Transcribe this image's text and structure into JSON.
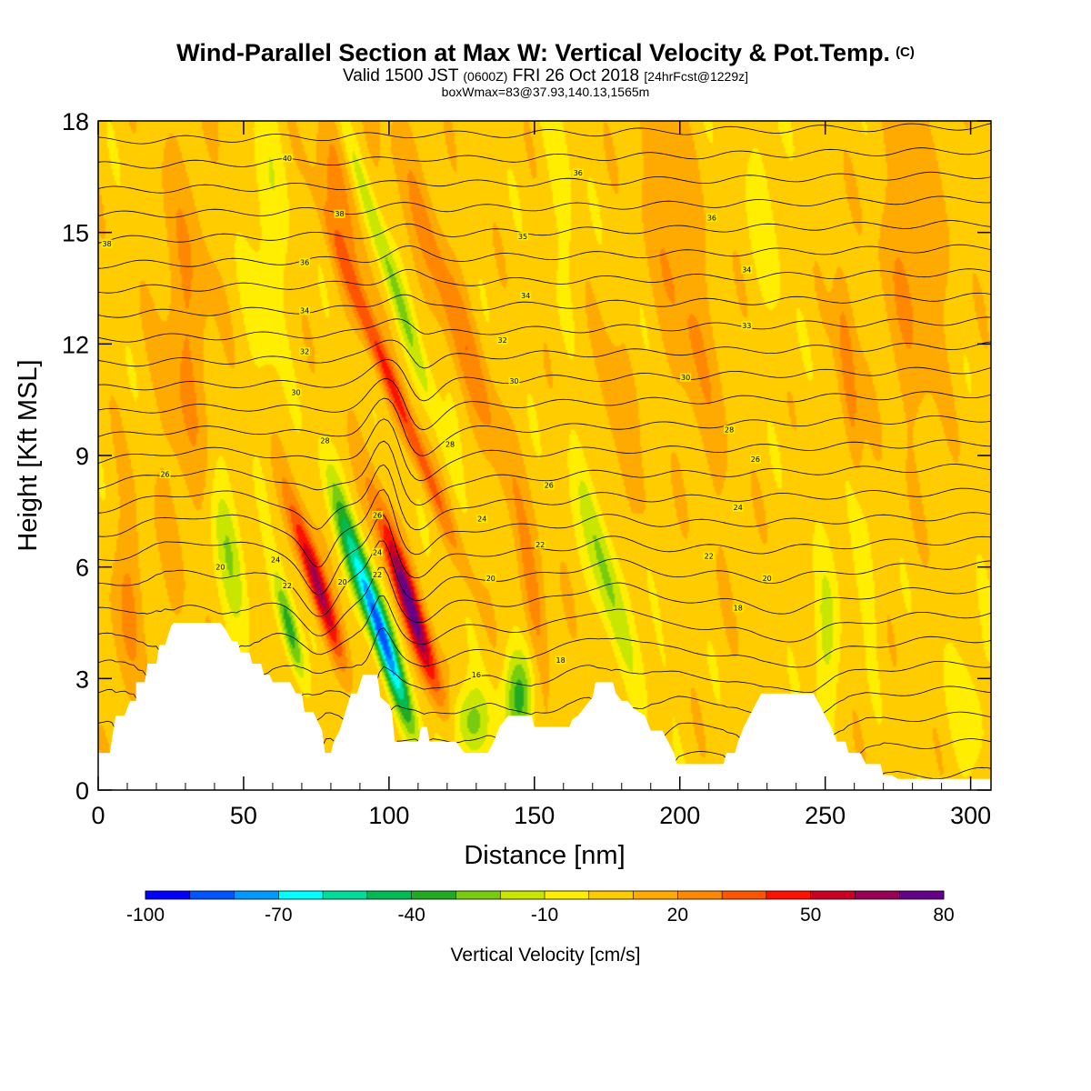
{
  "title": {
    "main": "Wind-Parallel Section at Max W: Vertical Velocity & Pot.Temp.",
    "copyright": "(C)",
    "valid_prefix": "Valid 1500 JST",
    "valid_zulu": "(0600Z)",
    "valid_date": "FRI 26 Oct 2018",
    "forecast": "[24hrFcst@1229z]",
    "box": "boxWmax=83@37.93,140.13,1565m"
  },
  "chart_data": {
    "type": "heatmap",
    "xlabel": "Distance [nm]",
    "ylabel": "Height [Kft MSL]",
    "xlim": [
      0,
      307
    ],
    "ylim": [
      0,
      18
    ],
    "xticks": [
      0,
      50,
      100,
      150,
      200,
      250,
      300
    ],
    "yticks": [
      0,
      3,
      6,
      9,
      12,
      15,
      18
    ],
    "colorbar": {
      "title": "Vertical Velocity [cm/s]",
      "min": -100,
      "max": 80,
      "step": 10,
      "tick_values": [
        -100,
        -70,
        -40,
        -10,
        20,
        50,
        80
      ],
      "colors": [
        "#0000ff",
        "#0055ff",
        "#0099ff",
        "#00ffff",
        "#00dd99",
        "#00bb55",
        "#22aa22",
        "#77cc11",
        "#c8e600",
        "#ffee00",
        "#ffcc00",
        "#ffaa00",
        "#ff8800",
        "#ff5500",
        "#ff1100",
        "#cc0022",
        "#990055",
        "#660088"
      ]
    },
    "background_value": 5,
    "terrain_profile": [
      [
        0,
        1.0
      ],
      [
        4,
        1.0
      ],
      [
        6,
        2.0
      ],
      [
        9,
        2.0
      ],
      [
        11,
        2.4
      ],
      [
        13,
        2.4
      ],
      [
        13,
        2.9
      ],
      [
        16,
        2.9
      ],
      [
        17,
        3.4
      ],
      [
        20,
        3.4
      ],
      [
        21,
        3.9
      ],
      [
        23,
        3.9
      ],
      [
        25,
        4.4
      ],
      [
        26,
        4.5
      ],
      [
        42,
        4.5
      ],
      [
        44,
        4.3
      ],
      [
        46,
        4.0
      ],
      [
        48,
        4.0
      ],
      [
        49,
        3.7
      ],
      [
        52,
        3.7
      ],
      [
        53,
        3.4
      ],
      [
        56,
        3.4
      ],
      [
        57,
        3.1
      ],
      [
        59,
        3.1
      ],
      [
        60,
        2.9
      ],
      [
        66,
        2.9
      ],
      [
        68,
        2.6
      ],
      [
        70,
        2.6
      ],
      [
        71,
        2.1
      ],
      [
        74,
        2.1
      ],
      [
        77,
        1.6
      ],
      [
        78,
        1.0
      ],
      [
        80,
        1.0
      ],
      [
        81,
        1.3
      ],
      [
        83,
        1.6
      ],
      [
        85,
        2.1
      ],
      [
        87,
        2.6
      ],
      [
        89,
        2.6
      ],
      [
        91,
        3.1
      ],
      [
        96,
        3.1
      ],
      [
        97,
        2.5
      ],
      [
        100,
        2.3
      ],
      [
        101,
        2.1
      ],
      [
        102,
        1.3
      ],
      [
        110,
        1.3
      ],
      [
        111,
        1.7
      ],
      [
        113,
        1.7
      ],
      [
        114,
        1.3
      ],
      [
        118,
        1.3
      ],
      [
        120,
        1.3
      ],
      [
        123,
        1.3
      ],
      [
        126,
        1.0
      ],
      [
        128,
        1.0
      ],
      [
        133,
        1.0
      ],
      [
        134,
        1.0
      ],
      [
        136,
        1.3
      ],
      [
        138,
        1.7
      ],
      [
        141,
        2.0
      ],
      [
        144,
        2.0
      ],
      [
        149,
        2.0
      ],
      [
        150,
        1.7
      ],
      [
        154,
        1.7
      ],
      [
        158,
        1.7
      ],
      [
        162,
        1.7
      ],
      [
        163,
        1.9
      ],
      [
        165,
        2.0
      ],
      [
        167,
        2.2
      ],
      [
        170,
        2.5
      ],
      [
        171,
        2.9
      ],
      [
        177,
        2.9
      ],
      [
        178,
        2.6
      ],
      [
        180,
        2.4
      ],
      [
        182,
        2.4
      ],
      [
        184,
        2.2
      ],
      [
        188,
        2.0
      ],
      [
        190,
        1.6
      ],
      [
        194,
        1.6
      ],
      [
        196,
        1.3
      ],
      [
        198,
        1.0
      ],
      [
        199,
        0.7
      ],
      [
        215,
        0.7
      ],
      [
        216,
        1.0
      ],
      [
        219,
        1.0
      ],
      [
        220,
        1.3
      ],
      [
        222,
        1.7
      ],
      [
        224,
        2.0
      ],
      [
        226,
        2.3
      ],
      [
        228,
        2.6
      ],
      [
        246,
        2.6
      ],
      [
        248,
        2.3
      ],
      [
        250,
        2.0
      ],
      [
        252,
        1.7
      ],
      [
        254,
        1.3
      ],
      [
        257,
        1.3
      ],
      [
        258,
        1.0
      ],
      [
        262,
        1.0
      ],
      [
        264,
        0.7
      ],
      [
        266,
        0.7
      ],
      [
        269,
        0.7
      ],
      [
        270,
        0.4
      ],
      [
        273,
        0.4
      ],
      [
        275,
        0.3
      ],
      [
        307,
        0.3
      ]
    ],
    "velocity_features": [
      {
        "x": 75,
        "z": 5.6,
        "sx": 2.4,
        "sz": 1.5,
        "tilt": -4,
        "value": 60
      },
      {
        "x": 66,
        "z": 4.3,
        "sx": 2.0,
        "sz": 1.0,
        "tilt": -3,
        "value": -45
      },
      {
        "x": 97,
        "z": 4.3,
        "sx": 2.5,
        "sz": 1.8,
        "tilt": -4,
        "value": -90
      },
      {
        "x": 107,
        "z": 5.0,
        "sx": 2.6,
        "sz": 1.8,
        "tilt": -4,
        "value": 70
      },
      {
        "x": 103,
        "z": 10.5,
        "sx": 2.2,
        "sz": 3.0,
        "tilt": -5,
        "value": 35
      },
      {
        "x": 100,
        "z": 14.0,
        "sx": 2.2,
        "sz": 3.6,
        "tilt": -4,
        "value": -25
      },
      {
        "x": 84,
        "z": 16.0,
        "sx": 4.5,
        "sz": 2.4,
        "tilt": -2,
        "value": 18
      },
      {
        "x": 58,
        "z": 15.0,
        "sx": 4.5,
        "sz": 3.0,
        "tilt": 0,
        "value": -12
      },
      {
        "x": 45,
        "z": 6.5,
        "sx": 3.5,
        "sz": 1.4,
        "tilt": -2,
        "value": -25
      },
      {
        "x": 85,
        "z": 6.8,
        "sx": 2.5,
        "sz": 1.5,
        "tilt": -3,
        "value": -20
      },
      {
        "x": 122,
        "z": 13.0,
        "sx": 4.0,
        "sz": 4.0,
        "tilt": -4,
        "value": 20
      },
      {
        "x": 145,
        "z": 2.6,
        "sx": 3.5,
        "sz": 0.9,
        "tilt": 0,
        "value": -38
      },
      {
        "x": 128,
        "z": 1.8,
        "sx": 5.0,
        "sz": 0.7,
        "tilt": 0,
        "value": -30
      },
      {
        "x": 174,
        "z": 6.0,
        "sx": 3.0,
        "sz": 2.0,
        "tilt": -3,
        "value": -28
      },
      {
        "x": 190,
        "z": 5.5,
        "sx": 2.0,
        "sz": 1.8,
        "tilt": -2,
        "value": -15
      },
      {
        "x": 180,
        "z": 9.5,
        "sx": 3.0,
        "sz": 2.5,
        "tilt": -3,
        "value": 18
      },
      {
        "x": 262,
        "z": 6.5,
        "sx": 2.5,
        "sz": 1.5,
        "tilt": -2,
        "value": -18
      },
      {
        "x": 258,
        "z": 11.0,
        "sx": 2.2,
        "sz": 2.5,
        "tilt": -1,
        "value": 22
      },
      {
        "x": 250,
        "z": 4.0,
        "sx": 3.0,
        "sz": 1.5,
        "tilt": 0,
        "value": -18
      },
      {
        "x": 200,
        "z": 14.0,
        "sx": 6.0,
        "sz": 4.0,
        "tilt": -2,
        "value": 16
      },
      {
        "x": 280,
        "z": 14.0,
        "sx": 8.0,
        "sz": 3.0,
        "tilt": 0,
        "value": 14
      },
      {
        "x": 30,
        "z": 12.0,
        "sx": 6.0,
        "sz": 4.0,
        "tilt": 0,
        "value": 15
      },
      {
        "x": 10,
        "z": 5.0,
        "sx": 4.0,
        "sz": 2.0,
        "tilt": 0,
        "value": 15
      },
      {
        "x": 150,
        "z": 5.0,
        "sx": 2.5,
        "sz": 1.5,
        "tilt": -2,
        "value": 20
      },
      {
        "x": 160,
        "z": 16.0,
        "sx": 3.0,
        "sz": 2.5,
        "tilt": -2,
        "value": -12
      },
      {
        "x": 230,
        "z": 16.0,
        "sx": 3.5,
        "sz": 2.5,
        "tilt": -1,
        "value": -10
      },
      {
        "x": 300,
        "z": 2.5,
        "sx": 5.0,
        "sz": 1.5,
        "tilt": 0,
        "value": -10
      }
    ],
    "theta_contours": {
      "min": 14,
      "max": 41,
      "step": 1,
      "labels": [
        {
          "x": 65,
          "z": 17.0,
          "text": "40"
        },
        {
          "x": 3,
          "z": 14.7,
          "text": "38"
        },
        {
          "x": 83,
          "z": 15.5,
          "text": "38"
        },
        {
          "x": 165,
          "z": 16.6,
          "text": "36"
        },
        {
          "x": 211,
          "z": 15.4,
          "text": "36"
        },
        {
          "x": 146,
          "z": 14.9,
          "text": "35"
        },
        {
          "x": 71,
          "z": 14.2,
          "text": "36"
        },
        {
          "x": 147,
          "z": 13.3,
          "text": "34"
        },
        {
          "x": 223,
          "z": 14.0,
          "text": "34"
        },
        {
          "x": 71,
          "z": 12.9,
          "text": "34"
        },
        {
          "x": 139,
          "z": 12.1,
          "text": "32"
        },
        {
          "x": 223,
          "z": 12.5,
          "text": "33"
        },
        {
          "x": 71,
          "z": 11.8,
          "text": "32"
        },
        {
          "x": 143,
          "z": 11.0,
          "text": "30"
        },
        {
          "x": 202,
          "z": 11.1,
          "text": "30"
        },
        {
          "x": 68,
          "z": 10.7,
          "text": "30"
        },
        {
          "x": 121,
          "z": 9.3,
          "text": "28"
        },
        {
          "x": 217,
          "z": 9.7,
          "text": "28"
        },
        {
          "x": 78,
          "z": 9.4,
          "text": "28"
        },
        {
          "x": 226,
          "z": 8.9,
          "text": "26"
        },
        {
          "x": 23,
          "z": 8.5,
          "text": "26"
        },
        {
          "x": 155,
          "z": 8.2,
          "text": "26"
        },
        {
          "x": 96,
          "z": 7.4,
          "text": "26"
        },
        {
          "x": 132,
          "z": 7.3,
          "text": "24"
        },
        {
          "x": 220,
          "z": 7.6,
          "text": "24"
        },
        {
          "x": 61,
          "z": 6.2,
          "text": "24"
        },
        {
          "x": 96,
          "z": 6.4,
          "text": "24"
        },
        {
          "x": 152,
          "z": 6.6,
          "text": "22"
        },
        {
          "x": 210,
          "z": 6.3,
          "text": "22"
        },
        {
          "x": 42,
          "z": 6.0,
          "text": "20"
        },
        {
          "x": 65,
          "z": 5.5,
          "text": "22"
        },
        {
          "x": 96,
          "z": 5.8,
          "text": "22"
        },
        {
          "x": 135,
          "z": 5.7,
          "text": "20"
        },
        {
          "x": 230,
          "z": 5.7,
          "text": "20"
        },
        {
          "x": 84,
          "z": 5.6,
          "text": "20"
        },
        {
          "x": 220,
          "z": 4.9,
          "text": "18"
        },
        {
          "x": 159,
          "z": 3.5,
          "text": "18"
        },
        {
          "x": 130,
          "z": 3.1,
          "text": "16"
        }
      ]
    }
  }
}
